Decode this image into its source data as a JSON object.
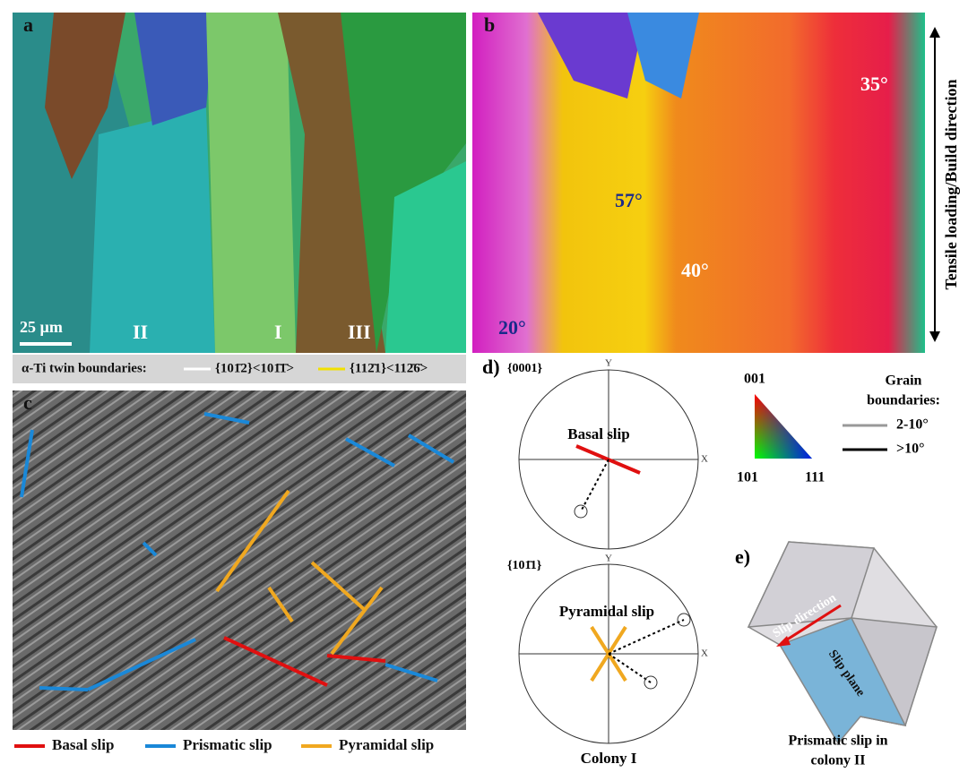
{
  "panels": {
    "a": {
      "label": "a",
      "scale_bar": "25 µm",
      "colonies": [
        "II",
        "I",
        "III"
      ],
      "legend": {
        "title": "α-Ti twin boundaries:",
        "items": [
          "{101̄2}<101̄1̄>",
          "{112̄1}<112̄6̄>"
        ]
      }
    },
    "b": {
      "label": "b",
      "angles": [
        "35°",
        "57°",
        "40°",
        "20°"
      ]
    },
    "side_label": "Tensile loading/Build direction",
    "c": {
      "label": "c",
      "legend": [
        "Basal slip",
        "Prismatic slip",
        "Pyramidal slip"
      ]
    },
    "d": {
      "label": "d)",
      "pole1": {
        "title": "{0001}",
        "y": "Y",
        "x": "X",
        "slip": "Basal slip"
      },
      "pole2": {
        "title": "{101̄1}",
        "y": "Y",
        "x": "X",
        "slip": "Pyramidal slip"
      },
      "caption": "Colony I"
    },
    "ipf": {
      "corners": [
        "001",
        "101",
        "111"
      ]
    },
    "grain_boundaries": {
      "title": [
        "Grain",
        "boundaries:"
      ],
      "items": [
        "2-10°",
        ">10°"
      ]
    },
    "e": {
      "label": "e)",
      "direction": "Slip direction",
      "plane": "Slip plane",
      "caption": [
        "Prismatic slip in",
        "colony II"
      ]
    }
  }
}
